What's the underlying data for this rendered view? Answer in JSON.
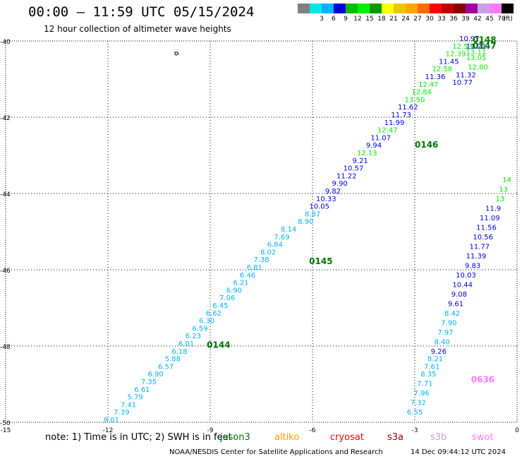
{
  "header": {
    "title": "00:00 — 11:59 UTC 05/15/2024",
    "subtitle": "12 hour collection of altimeter wave heights"
  },
  "colorbar": {
    "unit": "(ft)",
    "steps": [
      {
        "color": "#808080",
        "label": ""
      },
      {
        "color": "#00e5e5",
        "label": "3"
      },
      {
        "color": "#00b2ff",
        "label": "6"
      },
      {
        "color": "#0000e0",
        "label": "9"
      },
      {
        "color": "#00bb00",
        "label": "12"
      },
      {
        "color": "#00ee00",
        "label": "15"
      },
      {
        "color": "#009900",
        "label": "18"
      },
      {
        "color": "#ffff00",
        "label": "21"
      },
      {
        "color": "#e8c800",
        "label": "24"
      },
      {
        "color": "#ffa500",
        "label": "27"
      },
      {
        "color": "#ff6a00",
        "label": "30"
      },
      {
        "color": "#ff0000",
        "label": "33"
      },
      {
        "color": "#c00000",
        "label": "36"
      },
      {
        "color": "#8b0000",
        "label": "39"
      },
      {
        "color": "#a000a0",
        "label": "42"
      },
      {
        "color": "#c8a0e6",
        "label": "45"
      },
      {
        "color": "#ff78ff",
        "label": "70"
      },
      {
        "color": "#000000",
        "label": ""
      }
    ]
  },
  "map": {
    "lon_range": [
      -15,
      0
    ],
    "lat_range": [
      -50,
      -40
    ],
    "x_ticks": [
      "-15",
      "-12",
      "-9",
      "-6",
      "-3",
      "0"
    ],
    "y_ticks": [
      "-40",
      "-42",
      "-44",
      "-46",
      "-48",
      "-50"
    ],
    "grid": "dotted",
    "tracks": [
      {
        "name": "0144",
        "color": "#007700",
        "lon": -8.8,
        "lat": -48.0,
        "readings": [
          {
            "lon": -11.9,
            "lat": -50.0,
            "value": "8.01",
            "color": "#00b2ff"
          },
          {
            "lon": -11.6,
            "lat": -49.8,
            "value": "7.39",
            "color": "#00b2ff"
          },
          {
            "lon": -11.4,
            "lat": -49.6,
            "value": "7.41",
            "color": "#00b2ff"
          },
          {
            "lon": -11.2,
            "lat": -49.4,
            "value": "5.79",
            "color": "#00b2ff"
          },
          {
            "lon": -11.0,
            "lat": -49.2,
            "value": "6.61",
            "color": "#00b2ff"
          },
          {
            "lon": -10.8,
            "lat": -49.0,
            "value": "7.35",
            "color": "#00b2ff"
          },
          {
            "lon": -10.6,
            "lat": -48.8,
            "value": "6.90",
            "color": "#00b2ff"
          },
          {
            "lon": -10.3,
            "lat": -48.6,
            "value": "6.57",
            "color": "#00b2ff"
          },
          {
            "lon": -10.1,
            "lat": -48.4,
            "value": "5.88",
            "color": "#00b2ff"
          },
          {
            "lon": -9.9,
            "lat": -48.2,
            "value": "6.18",
            "color": "#00b2ff"
          },
          {
            "lon": -9.7,
            "lat": -48.0,
            "value": "6.01",
            "color": "#00b2ff"
          },
          {
            "lon": -9.5,
            "lat": -47.8,
            "value": "6.23",
            "color": "#00b2ff"
          },
          {
            "lon": -9.3,
            "lat": -47.6,
            "value": "6.59",
            "color": "#00b2ff"
          },
          {
            "lon": -9.1,
            "lat": -47.4,
            "value": "6.30",
            "color": "#00b2ff"
          },
          {
            "lon": -8.9,
            "lat": -47.2,
            "value": "6.62",
            "color": "#00b2ff"
          },
          {
            "lon": -8.7,
            "lat": -47.0,
            "value": "6.45",
            "color": "#00b2ff"
          },
          {
            "lon": -8.5,
            "lat": -46.8,
            "value": "7.06",
            "color": "#00b2ff"
          },
          {
            "lon": -8.3,
            "lat": -46.6,
            "value": "6.90",
            "color": "#00b2ff"
          },
          {
            "lon": -8.1,
            "lat": -46.4,
            "value": "6.21",
            "color": "#00b2ff"
          },
          {
            "lon": -7.9,
            "lat": -46.2,
            "value": "6.46",
            "color": "#00b2ff"
          },
          {
            "lon": -7.7,
            "lat": -46.0,
            "value": "6.81",
            "color": "#00b2ff"
          },
          {
            "lon": -7.5,
            "lat": -45.8,
            "value": "7.38",
            "color": "#00b2ff"
          },
          {
            "lon": -7.3,
            "lat": -45.6,
            "value": "8.02",
            "color": "#00b2ff"
          },
          {
            "lon": -7.1,
            "lat": -45.4,
            "value": "6.84",
            "color": "#00b2ff"
          },
          {
            "lon": -6.9,
            "lat": -45.2,
            "value": "7.69",
            "color": "#00b2ff"
          },
          {
            "lon": -6.7,
            "lat": -45.0,
            "value": "8.14",
            "color": "#00b2ff"
          },
          {
            "lon": -6.2,
            "lat": -44.8,
            "value": "8.90",
            "color": "#00b2ff"
          },
          {
            "lon": -6.0,
            "lat": -44.6,
            "value": "8.87",
            "color": "#00b2ff"
          },
          {
            "lon": -5.8,
            "lat": -44.4,
            "value": "10.05",
            "color": "#0000e0"
          },
          {
            "lon": -5.6,
            "lat": -44.2,
            "value": "10.33",
            "color": "#0000e0"
          },
          {
            "lon": -5.4,
            "lat": -44.0,
            "value": "9.82",
            "color": "#0000e0"
          },
          {
            "lon": -5.2,
            "lat": -43.8,
            "value": "9.90",
            "color": "#0000e0"
          },
          {
            "lon": -5.0,
            "lat": -43.6,
            "value": "11.22",
            "color": "#0000e0"
          },
          {
            "lon": -4.8,
            "lat": -43.4,
            "value": "10.57",
            "color": "#0000e0"
          },
          {
            "lon": -4.6,
            "lat": -43.2,
            "value": "9.21",
            "color": "#0000e0"
          },
          {
            "lon": -4.4,
            "lat": -43.0,
            "value": "12.13",
            "color": "#00ee00"
          },
          {
            "lon": -4.2,
            "lat": -42.8,
            "value": "9.94",
            "color": "#0000e0"
          },
          {
            "lon": -4.0,
            "lat": -42.6,
            "value": "11.07",
            "color": "#0000e0"
          },
          {
            "lon": -3.8,
            "lat": -42.4,
            "value": "12.47",
            "color": "#00ee00"
          },
          {
            "lon": -3.6,
            "lat": -42.2,
            "value": "11.99",
            "color": "#0000e0"
          },
          {
            "lon": -3.4,
            "lat": -42.0,
            "value": "11.73",
            "color": "#0000e0"
          },
          {
            "lon": -3.2,
            "lat": -41.8,
            "value": "11.62",
            "color": "#0000e0"
          },
          {
            "lon": -3.0,
            "lat": -41.6,
            "value": "13.50",
            "color": "#00ee00"
          },
          {
            "lon": -2.8,
            "lat": -41.4,
            "value": "12.84",
            "color": "#00ee00"
          },
          {
            "lon": -2.6,
            "lat": -41.2,
            "value": "12.47",
            "color": "#00ee00"
          },
          {
            "lon": -2.4,
            "lat": -41.0,
            "value": "11.36",
            "color": "#0000e0"
          },
          {
            "lon": -2.2,
            "lat": -40.8,
            "value": "12.58",
            "color": "#00ee00"
          },
          {
            "lon": -2.0,
            "lat": -40.6,
            "value": "11.45",
            "color": "#0000e0"
          },
          {
            "lon": -1.8,
            "lat": -40.4,
            "value": "12.39",
            "color": "#00ee00"
          },
          {
            "lon": -1.6,
            "lat": -40.2,
            "value": "12.53",
            "color": "#00ee00"
          },
          {
            "lon": -1.4,
            "lat": -40.0,
            "value": "10.97",
            "color": "#0000e0"
          }
        ]
      }
    ],
    "labels": [
      {
        "text": "0144",
        "lon": -9.1,
        "lat": -48.05,
        "color": "#007700"
      },
      {
        "text": "0145",
        "lon": -6.1,
        "lat": -45.85,
        "color": "#007700"
      },
      {
        "text": "0146",
        "lon": -3.0,
        "lat": -42.8,
        "color": "#007700"
      },
      {
        "text": "0147",
        "lon": -1.3,
        "lat": -40.2,
        "color": "#007700"
      },
      {
        "text": "0148",
        "lon": -1.3,
        "lat": -40.05,
        "color": "#007700"
      },
      {
        "text": "0636",
        "lon": -1.35,
        "lat": -48.95,
        "color": "#ff78ff"
      }
    ],
    "upper_track": [
      {
        "lon": -1.15,
        "lat": -40.75,
        "value": "12.80",
        "color": "#00ee00"
      },
      {
        "lon": -1.2,
        "lat": -40.5,
        "value": "13.05",
        "color": "#00ee00"
      },
      {
        "lon": -1.2,
        "lat": -40.35,
        "value": "13.11",
        "color": "#00ee00"
      },
      {
        "lon": -1.2,
        "lat": -40.2,
        "value": "11.21",
        "color": "#0000e0"
      },
      {
        "lon": -1.5,
        "lat": -40.95,
        "value": "11.32",
        "color": "#0000e0"
      },
      {
        "lon": -1.6,
        "lat": -41.15,
        "value": "10.77",
        "color": "#0000e0"
      }
    ],
    "right_track": [
      {
        "lon": -3.0,
        "lat": -49.8,
        "value": "6.55",
        "color": "#00b2ff"
      },
      {
        "lon": -2.9,
        "lat": -49.55,
        "value": "7.32",
        "color": "#00b2ff"
      },
      {
        "lon": -2.8,
        "lat": -49.3,
        "value": "7.96",
        "color": "#00b2ff"
      },
      {
        "lon": -2.7,
        "lat": -49.05,
        "value": "7.71",
        "color": "#00b2ff"
      },
      {
        "lon": -2.6,
        "lat": -48.8,
        "value": "8.35",
        "color": "#00b2ff"
      },
      {
        "lon": -2.5,
        "lat": -48.6,
        "value": "7.61",
        "color": "#00b2ff"
      },
      {
        "lon": -2.4,
        "lat": -48.4,
        "value": "8.21",
        "color": "#00b2ff"
      },
      {
        "lon": -2.3,
        "lat": -48.2,
        "value": "9.26",
        "color": "#0000e0"
      },
      {
        "lon": -2.2,
        "lat": -47.95,
        "value": "8.40",
        "color": "#00b2ff"
      },
      {
        "lon": -2.1,
        "lat": -47.7,
        "value": "7.97",
        "color": "#00b2ff"
      },
      {
        "lon": -2.0,
        "lat": -47.45,
        "value": "7.90",
        "color": "#00b2ff"
      },
      {
        "lon": -1.9,
        "lat": -47.2,
        "value": "8.42",
        "color": "#00b2ff"
      },
      {
        "lon": -1.8,
        "lat": -46.95,
        "value": "9.61",
        "color": "#0000e0"
      },
      {
        "lon": -1.7,
        "lat": -46.7,
        "value": "9.08",
        "color": "#0000e0"
      },
      {
        "lon": -1.6,
        "lat": -46.45,
        "value": "10.44",
        "color": "#0000e0"
      },
      {
        "lon": -1.5,
        "lat": -46.2,
        "value": "10.03",
        "color": "#0000e0"
      },
      {
        "lon": -1.3,
        "lat": -45.95,
        "value": "9.83",
        "color": "#0000e0"
      },
      {
        "lon": -1.2,
        "lat": -45.7,
        "value": "11.39",
        "color": "#0000e0"
      },
      {
        "lon": -1.1,
        "lat": -45.45,
        "value": "11.77",
        "color": "#0000e0"
      },
      {
        "lon": -1.0,
        "lat": -45.2,
        "value": "10.56",
        "color": "#0000e0"
      },
      {
        "lon": -0.9,
        "lat": -44.95,
        "value": "11.56",
        "color": "#0000e0"
      },
      {
        "lon": -0.8,
        "lat": -44.7,
        "value": "11.09",
        "color": "#0000e0"
      },
      {
        "lon": -0.7,
        "lat": -44.45,
        "value": "11.9",
        "color": "#0000e0"
      },
      {
        "lon": -0.5,
        "lat": -44.2,
        "value": "13",
        "color": "#00ee00"
      },
      {
        "lon": -0.4,
        "lat": -43.95,
        "value": "13",
        "color": "#00ee00"
      },
      {
        "lon": -0.3,
        "lat": -43.7,
        "value": "14",
        "color": "#00ee00"
      }
    ]
  },
  "footer": {
    "note": "note:  1) Time is in UTC;  2) SWH is in feet",
    "satellites": [
      {
        "name": "jason3",
        "color": "#007700"
      },
      {
        "name": "altiko",
        "color": "#ff9900"
      },
      {
        "name": "cryosat",
        "color": "#ff0000"
      },
      {
        "name": "s3a",
        "color": "#8b0000"
      },
      {
        "name": "s3b",
        "color": "#c8a0e6"
      },
      {
        "name": "swot",
        "color": "#ff78ff"
      }
    ],
    "credit": "NOAA/NESDIS Center for Satellite Applications and Research",
    "generated": "14 Dec 09:44:12 UTC 2024"
  }
}
